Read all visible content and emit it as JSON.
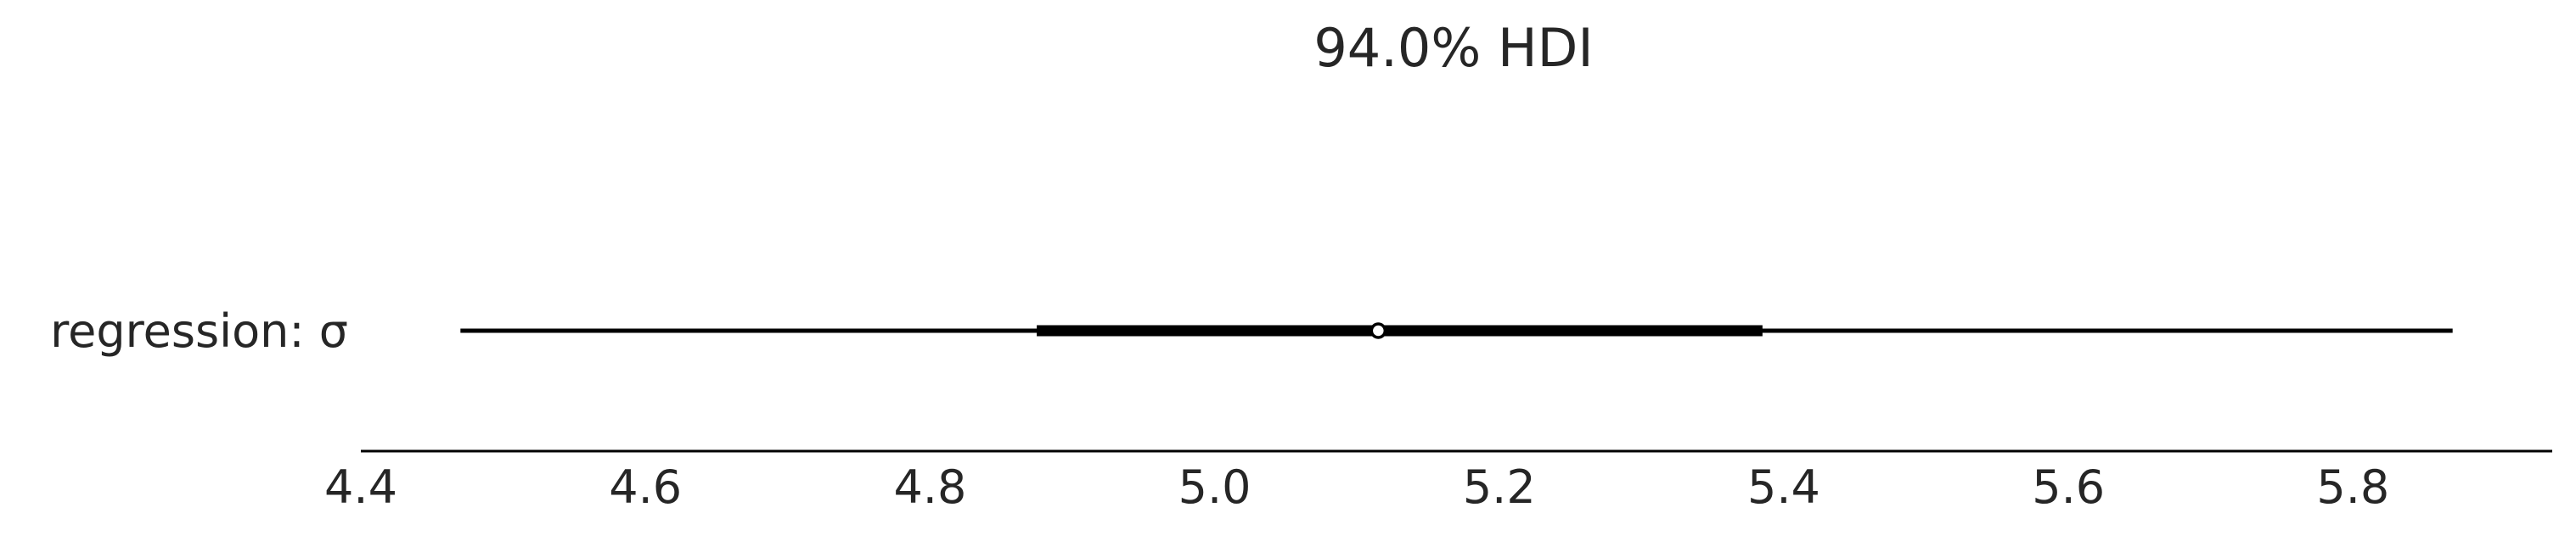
{
  "chart_data": {
    "type": "forest",
    "title": "94.0% HDI",
    "xlabel": "",
    "ylabel": "",
    "xlim": [
      4.4,
      5.94
    ],
    "x_ticks": [
      4.4,
      4.6,
      4.8,
      5.0,
      5.2,
      5.4,
      5.6,
      5.8
    ],
    "x_tick_labels": [
      "4.4",
      "4.6",
      "4.8",
      "5.0",
      "5.2",
      "5.4",
      "5.6",
      "5.8"
    ],
    "grid": false,
    "rows": [
      {
        "label": "regression: σ",
        "hdi_low": 4.47,
        "hdi_high": 5.87,
        "iqr_low": 4.875,
        "iqr_high": 5.385,
        "point": 5.115
      }
    ]
  }
}
